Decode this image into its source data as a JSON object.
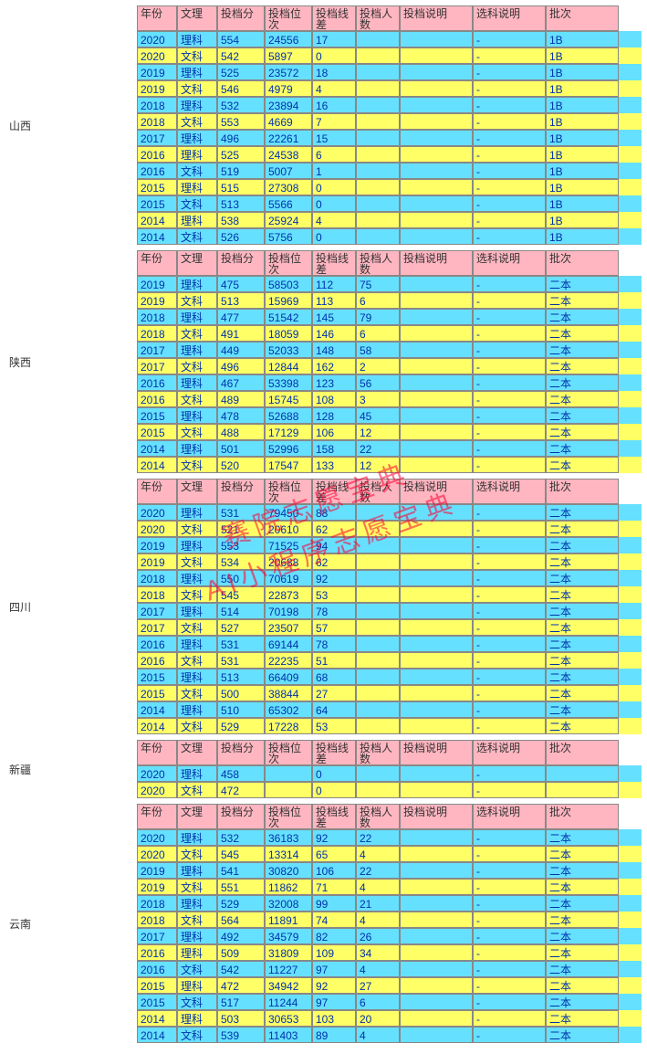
{
  "columns": [
    "年份",
    "文理",
    "投档分",
    "投档位次",
    "投档线差",
    "投档人数",
    "投档说明",
    "选科说明",
    "批次"
  ],
  "watermark_lines": [
    "赛院志愿宝典",
    "AI小程序志愿宝典"
  ],
  "watermark_color": "#ff0033",
  "header_bg": "#ffb6c1",
  "row_even_bg": "#66e0ff",
  "row_odd_bg": "#ffff66",
  "text_color": "#0033aa",
  "provinces": [
    {
      "name": "山西",
      "rows": [
        [
          "2020",
          "理科",
          "554",
          "24556",
          "17",
          "",
          "",
          "-",
          "1B"
        ],
        [
          "2020",
          "文科",
          "542",
          "5897",
          "0",
          "",
          "",
          "-",
          "1B"
        ],
        [
          "2019",
          "理科",
          "525",
          "23572",
          "18",
          "",
          "",
          "-",
          "1B"
        ],
        [
          "2019",
          "文科",
          "546",
          "4979",
          "4",
          "",
          "",
          "-",
          "1B"
        ],
        [
          "2018",
          "理科",
          "532",
          "23894",
          "16",
          "",
          "",
          "-",
          "1B"
        ],
        [
          "2018",
          "文科",
          "553",
          "4669",
          "7",
          "",
          "",
          "-",
          "1B"
        ],
        [
          "2017",
          "理科",
          "496",
          "22261",
          "15",
          "",
          "",
          "-",
          "1B"
        ],
        [
          "2016",
          "理科",
          "525",
          "24538",
          "6",
          "",
          "",
          "-",
          "1B"
        ],
        [
          "2016",
          "文科",
          "519",
          "5007",
          "1",
          "",
          "",
          "-",
          "1B"
        ],
        [
          "2015",
          "理科",
          "515",
          "27308",
          "0",
          "",
          "",
          "-",
          "1B"
        ],
        [
          "2015",
          "文科",
          "513",
          "5566",
          "0",
          "",
          "",
          "-",
          "1B"
        ],
        [
          "2014",
          "理科",
          "538",
          "25924",
          "4",
          "",
          "",
          "-",
          "1B"
        ],
        [
          "2014",
          "文科",
          "526",
          "5756",
          "0",
          "",
          "",
          "-",
          "1B"
        ]
      ]
    },
    {
      "name": "陕西",
      "rows": [
        [
          "2019",
          "理科",
          "475",
          "58503",
          "112",
          "75",
          "",
          "-",
          "二本"
        ],
        [
          "2019",
          "文科",
          "513",
          "15969",
          "113",
          "6",
          "",
          "-",
          "二本"
        ],
        [
          "2018",
          "理科",
          "477",
          "51542",
          "145",
          "79",
          "",
          "-",
          "二本"
        ],
        [
          "2018",
          "文科",
          "491",
          "18059",
          "146",
          "6",
          "",
          "-",
          "二本"
        ],
        [
          "2017",
          "理科",
          "449",
          "52033",
          "148",
          "58",
          "",
          "-",
          "二本"
        ],
        [
          "2017",
          "文科",
          "496",
          "12844",
          "162",
          "2",
          "",
          "-",
          "二本"
        ],
        [
          "2016",
          "理科",
          "467",
          "53398",
          "123",
          "56",
          "",
          "-",
          "二本"
        ],
        [
          "2016",
          "文科",
          "489",
          "15745",
          "108",
          "3",
          "",
          "-",
          "二本"
        ],
        [
          "2015",
          "理科",
          "478",
          "52688",
          "128",
          "45",
          "",
          "-",
          "二本"
        ],
        [
          "2015",
          "文科",
          "488",
          "17129",
          "106",
          "12",
          "",
          "-",
          "二本"
        ],
        [
          "2014",
          "理科",
          "501",
          "52996",
          "158",
          "22",
          "",
          "-",
          "二本"
        ],
        [
          "2014",
          "文科",
          "520",
          "17547",
          "133",
          "12",
          "",
          "-",
          "二本"
        ]
      ]
    },
    {
      "name": "四川",
      "rows": [
        [
          "2020",
          "理科",
          "531",
          "79450",
          "88",
          "",
          "",
          "-",
          "二本"
        ],
        [
          "2020",
          "文科",
          "521",
          "20610",
          "62",
          "",
          "",
          "-",
          "二本"
        ],
        [
          "2019",
          "理科",
          "553",
          "71525",
          "94",
          "",
          "",
          "-",
          "二本"
        ],
        [
          "2019",
          "文科",
          "534",
          "20688",
          "62",
          "",
          "",
          "-",
          "二本"
        ],
        [
          "2018",
          "理科",
          "550",
          "70619",
          "92",
          "",
          "",
          "-",
          "二本"
        ],
        [
          "2018",
          "文科",
          "545",
          "22873",
          "53",
          "",
          "",
          "-",
          "二本"
        ],
        [
          "2017",
          "理科",
          "514",
          "70198",
          "78",
          "",
          "",
          "-",
          "二本"
        ],
        [
          "2017",
          "文科",
          "527",
          "23507",
          "57",
          "",
          "",
          "-",
          "二本"
        ],
        [
          "2016",
          "理科",
          "531",
          "69144",
          "78",
          "",
          "",
          "-",
          "二本"
        ],
        [
          "2016",
          "文科",
          "531",
          "22235",
          "51",
          "",
          "",
          "-",
          "二本"
        ],
        [
          "2015",
          "理科",
          "513",
          "66409",
          "68",
          "",
          "",
          "-",
          "二本"
        ],
        [
          "2015",
          "文科",
          "500",
          "38844",
          "27",
          "",
          "",
          "-",
          "二本"
        ],
        [
          "2014",
          "理科",
          "510",
          "65302",
          "64",
          "",
          "",
          "-",
          "二本"
        ],
        [
          "2014",
          "文科",
          "529",
          "17228",
          "53",
          "",
          "",
          "-",
          "二本"
        ]
      ]
    },
    {
      "name": "新疆",
      "rows": [
        [
          "2020",
          "理科",
          "458",
          "",
          "0",
          "",
          "",
          "-",
          ""
        ],
        [
          "2020",
          "文科",
          "472",
          "",
          "0",
          "",
          "",
          "-",
          ""
        ]
      ]
    },
    {
      "name": "云南",
      "rows": [
        [
          "2020",
          "理科",
          "532",
          "36183",
          "92",
          "22",
          "",
          "-",
          "二本"
        ],
        [
          "2020",
          "文科",
          "545",
          "13314",
          "65",
          "4",
          "",
          "-",
          "二本"
        ],
        [
          "2019",
          "理科",
          "541",
          "30820",
          "106",
          "22",
          "",
          "-",
          "二本"
        ],
        [
          "2019",
          "文科",
          "551",
          "11862",
          "71",
          "4",
          "",
          "-",
          "二本"
        ],
        [
          "2018",
          "理科",
          "529",
          "32008",
          "99",
          "21",
          "",
          "-",
          "二本"
        ],
        [
          "2018",
          "文科",
          "564",
          "11891",
          "74",
          "4",
          "",
          "-",
          "二本"
        ],
        [
          "2017",
          "理科",
          "492",
          "34579",
          "82",
          "26",
          "",
          "-",
          "二本"
        ],
        [
          "2016",
          "理科",
          "509",
          "31809",
          "109",
          "34",
          "",
          "-",
          "二本"
        ],
        [
          "2016",
          "文科",
          "542",
          "11227",
          "97",
          "4",
          "",
          "-",
          "二本"
        ],
        [
          "2015",
          "理科",
          "472",
          "34942",
          "92",
          "27",
          "",
          "-",
          "二本"
        ],
        [
          "2015",
          "文科",
          "517",
          "11244",
          "97",
          "6",
          "",
          "-",
          "二本"
        ],
        [
          "2014",
          "理科",
          "503",
          "30653",
          "103",
          "20",
          "",
          "-",
          "二本"
        ],
        [
          "2014",
          "文科",
          "539",
          "11403",
          "89",
          "4",
          "",
          "-",
          "二本"
        ]
      ]
    }
  ]
}
